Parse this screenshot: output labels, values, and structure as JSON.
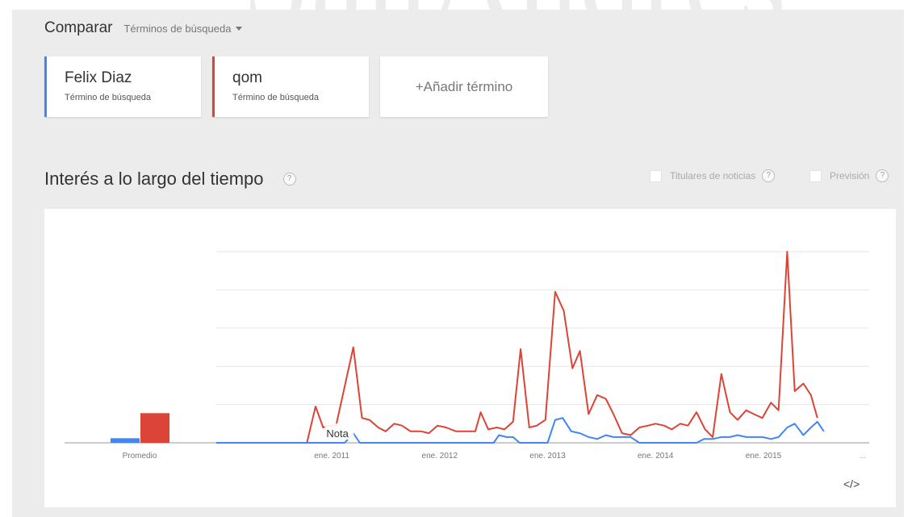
{
  "watermark": "SanAndres",
  "compare": {
    "title": "Comparar",
    "dropdown_label": "Términos de búsqueda"
  },
  "terms": [
    {
      "name": "Felix Diaz",
      "subtitle": "Término de búsqueda",
      "color": "#4285f4"
    },
    {
      "name": "qom",
      "subtitle": "Término de búsqueda",
      "color": "#db4437"
    }
  ],
  "add_term_label": "+Añadir término",
  "section": {
    "title": "Interés a lo largo del tiempo",
    "help_glyph": "?",
    "options": [
      {
        "label": "Titulares de noticias"
      },
      {
        "label": "Previsión"
      }
    ]
  },
  "embed_label": "</>",
  "chart_data": {
    "type": "line",
    "x_tick_labels": [
      "ene. 2011",
      "ene. 2012",
      "ene. 2013",
      "ene. 2014",
      "ene. 2015",
      "..."
    ],
    "x_ticks": [
      2011,
      2012,
      2013,
      2014,
      2015
    ],
    "xlim": [
      2009.93,
      2015.98
    ],
    "ylim": [
      0,
      100
    ],
    "grid": true,
    "average_label": "Promedio",
    "note_label": "Nota",
    "note_x": 2010.95,
    "averages": [
      2.4,
      15.5
    ],
    "series": [
      {
        "color": "#db4437",
        "points": [
          [
            2009.93,
            0
          ],
          [
            2010.77,
            0
          ],
          [
            2010.85,
            19
          ],
          [
            2010.92,
            8
          ],
          [
            2010.98,
            9
          ],
          [
            2011.04,
            9
          ],
          [
            2011.2,
            50
          ],
          [
            2011.28,
            13
          ],
          [
            2011.35,
            12
          ],
          [
            2011.43,
            8
          ],
          [
            2011.5,
            6
          ],
          [
            2011.58,
            10
          ],
          [
            2011.65,
            9
          ],
          [
            2011.73,
            6
          ],
          [
            2011.83,
            6
          ],
          [
            2011.9,
            5
          ],
          [
            2011.98,
            9
          ],
          [
            2012.06,
            8
          ],
          [
            2012.15,
            6
          ],
          [
            2012.22,
            6
          ],
          [
            2012.33,
            6
          ],
          [
            2012.38,
            16
          ],
          [
            2012.45,
            7
          ],
          [
            2012.53,
            8
          ],
          [
            2012.6,
            7
          ],
          [
            2012.68,
            11
          ],
          [
            2012.75,
            49
          ],
          [
            2012.83,
            8
          ],
          [
            2012.9,
            9
          ],
          [
            2012.98,
            12
          ],
          [
            2013.07,
            79
          ],
          [
            2013.15,
            69
          ],
          [
            2013.23,
            39
          ],
          [
            2013.3,
            48
          ],
          [
            2013.38,
            15
          ],
          [
            2013.46,
            25
          ],
          [
            2013.54,
            23
          ],
          [
            2013.61,
            15
          ],
          [
            2013.69,
            5
          ],
          [
            2013.77,
            4
          ],
          [
            2013.85,
            8
          ],
          [
            2013.93,
            9
          ],
          [
            2014.0,
            10
          ],
          [
            2014.08,
            9
          ],
          [
            2014.15,
            7
          ],
          [
            2014.23,
            10
          ],
          [
            2014.3,
            9
          ],
          [
            2014.38,
            16
          ],
          [
            2014.46,
            7
          ],
          [
            2014.53,
            3
          ],
          [
            2014.61,
            36
          ],
          [
            2014.69,
            16
          ],
          [
            2014.76,
            12
          ],
          [
            2014.84,
            17
          ],
          [
            2014.91,
            15
          ],
          [
            2014.99,
            13
          ],
          [
            2015.07,
            21
          ],
          [
            2015.14,
            17
          ],
          [
            2015.22,
            100
          ],
          [
            2015.29,
            27
          ],
          [
            2015.37,
            31
          ],
          [
            2015.44,
            25
          ],
          [
            2015.5,
            13
          ]
        ]
      },
      {
        "color": "#4285f4",
        "points": [
          [
            2009.93,
            0
          ],
          [
            2011.12,
            0
          ],
          [
            2011.2,
            5
          ],
          [
            2011.26,
            0
          ],
          [
            2012.5,
            0
          ],
          [
            2012.55,
            4
          ],
          [
            2012.62,
            3
          ],
          [
            2012.68,
            3
          ],
          [
            2012.74,
            0
          ],
          [
            2013.0,
            0
          ],
          [
            2013.07,
            12
          ],
          [
            2013.14,
            13
          ],
          [
            2013.22,
            6
          ],
          [
            2013.3,
            5
          ],
          [
            2013.38,
            3
          ],
          [
            2013.46,
            2
          ],
          [
            2013.54,
            4
          ],
          [
            2013.61,
            3
          ],
          [
            2013.69,
            3
          ],
          [
            2013.77,
            3
          ],
          [
            2013.85,
            0
          ],
          [
            2014.38,
            0
          ],
          [
            2014.45,
            2
          ],
          [
            2014.53,
            2
          ],
          [
            2014.61,
            3
          ],
          [
            2014.69,
            3
          ],
          [
            2014.76,
            4
          ],
          [
            2014.84,
            3
          ],
          [
            2014.91,
            3
          ],
          [
            2014.99,
            3
          ],
          [
            2015.07,
            2
          ],
          [
            2015.14,
            3
          ],
          [
            2015.22,
            8
          ],
          [
            2015.29,
            10
          ],
          [
            2015.37,
            4
          ],
          [
            2015.44,
            8
          ],
          [
            2015.5,
            11
          ],
          [
            2015.56,
            6
          ]
        ]
      }
    ]
  }
}
